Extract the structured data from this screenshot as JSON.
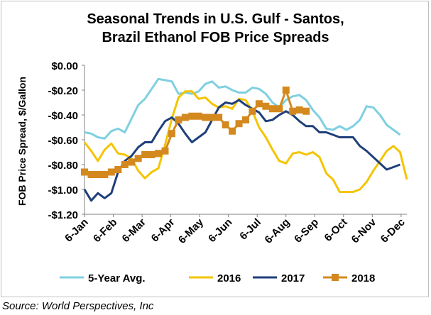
{
  "chart_data": {
    "type": "line",
    "title_line1": "Seasonal Trends in U.S. Gulf - Santos,",
    "title_line2": "Brazil Ethanol FOB Price Spreads",
    "ylabel": "FOB Price Spread, $/Gallon",
    "xlabel": "",
    "ylim": [
      -1.2,
      0
    ],
    "yticks": [
      0,
      -0.2,
      -0.4,
      -0.6,
      -0.8,
      -1.0,
      -1.2
    ],
    "ytick_labels": [
      "$0.00",
      "-$0.20",
      "-$0.40",
      "-$0.60",
      "-$0.80",
      "-$1.00",
      "-$1.20"
    ],
    "xtick_labels": [
      "6-Jan",
      "6-Feb",
      "6-Mar",
      "6-Apr",
      "6-May",
      "6-Jun",
      "6-Jul",
      "6-Aug",
      "6-Sep",
      "6-Oct",
      "6-Nov",
      "6-Dec"
    ],
    "legend_position": "bottom",
    "grid": false,
    "source": "Source: World Perspectives, Inc",
    "series": [
      {
        "name": "5-Year Avg.",
        "color": "#7fd0e0",
        "marker": "none",
        "points": [
          [
            1,
            -0.54
          ],
          [
            2,
            -0.55
          ],
          [
            3,
            -0.58
          ],
          [
            4,
            -0.59
          ],
          [
            5,
            -0.53
          ],
          [
            6,
            -0.51
          ],
          [
            7,
            -0.54
          ],
          [
            8,
            -0.43
          ],
          [
            9,
            -0.32
          ],
          [
            10,
            -0.27
          ],
          [
            11,
            -0.19
          ],
          [
            12,
            -0.11
          ],
          [
            13,
            -0.12
          ],
          [
            14,
            -0.13
          ],
          [
            15,
            -0.23
          ],
          [
            16,
            -0.22
          ],
          [
            17,
            -0.23
          ],
          [
            18,
            -0.21
          ],
          [
            19,
            -0.15
          ],
          [
            20,
            -0.13
          ],
          [
            21,
            -0.18
          ],
          [
            22,
            -0.17
          ],
          [
            23,
            -0.2
          ],
          [
            24,
            -0.22
          ],
          [
            25,
            -0.22
          ],
          [
            26,
            -0.18
          ],
          [
            27,
            -0.19
          ],
          [
            28,
            -0.23
          ],
          [
            29,
            -0.3
          ],
          [
            30,
            -0.34
          ],
          [
            31,
            -0.28
          ],
          [
            32,
            -0.25
          ],
          [
            33,
            -0.24
          ],
          [
            34,
            -0.28
          ],
          [
            35,
            -0.36
          ],
          [
            36,
            -0.42
          ],
          [
            37,
            -0.51
          ],
          [
            38,
            -0.52
          ],
          [
            39,
            -0.49
          ],
          [
            40,
            -0.52
          ],
          [
            41,
            -0.49
          ],
          [
            42,
            -0.44
          ],
          [
            43,
            -0.33
          ],
          [
            44,
            -0.34
          ],
          [
            45,
            -0.4
          ],
          [
            46,
            -0.48
          ],
          [
            47,
            -0.52
          ],
          [
            48,
            -0.56
          ]
        ]
      },
      {
        "name": "2016",
        "color": "#f5c400",
        "marker": "none",
        "points": [
          [
            1,
            -0.62
          ],
          [
            2,
            -0.69
          ],
          [
            3,
            -0.77
          ],
          [
            4,
            -0.68
          ],
          [
            5,
            -0.63
          ],
          [
            6,
            -0.71
          ],
          [
            7,
            -0.72
          ],
          [
            8,
            -0.75
          ],
          [
            9,
            -0.85
          ],
          [
            10,
            -0.91
          ],
          [
            11,
            -0.86
          ],
          [
            12,
            -0.83
          ],
          [
            13,
            -0.64
          ],
          [
            14,
            -0.43
          ],
          [
            15,
            -0.26
          ],
          [
            16,
            -0.21
          ],
          [
            17,
            -0.21
          ],
          [
            18,
            -0.27
          ],
          [
            19,
            -0.26
          ],
          [
            20,
            -0.31
          ],
          [
            21,
            -0.34
          ],
          [
            22,
            -0.33
          ],
          [
            23,
            -0.35
          ],
          [
            24,
            -0.27
          ],
          [
            25,
            -0.28
          ],
          [
            26,
            -0.37
          ],
          [
            27,
            -0.5
          ],
          [
            28,
            -0.58
          ],
          [
            29,
            -0.68
          ],
          [
            30,
            -0.77
          ],
          [
            31,
            -0.79
          ],
          [
            32,
            -0.71
          ],
          [
            33,
            -0.7
          ],
          [
            34,
            -0.72
          ],
          [
            35,
            -0.7
          ],
          [
            36,
            -0.74
          ],
          [
            37,
            -0.87
          ],
          [
            38,
            -0.92
          ],
          [
            39,
            -1.02
          ],
          [
            40,
            -1.02
          ],
          [
            41,
            -1.02
          ],
          [
            42,
            -1.0
          ],
          [
            43,
            -0.94
          ],
          [
            44,
            -0.85
          ],
          [
            45,
            -0.77
          ],
          [
            46,
            -0.69
          ],
          [
            47,
            -0.65
          ],
          [
            48,
            -0.7
          ],
          [
            49,
            -0.92
          ]
        ]
      },
      {
        "name": "2017",
        "color": "#1f3f7a",
        "marker": "none",
        "points": [
          [
            1,
            -1.0
          ],
          [
            2,
            -1.09
          ],
          [
            3,
            -1.03
          ],
          [
            4,
            -1.07
          ],
          [
            5,
            -1.03
          ],
          [
            6,
            -0.86
          ],
          [
            7,
            -0.77
          ],
          [
            8,
            -0.73
          ],
          [
            9,
            -0.66
          ],
          [
            10,
            -0.62
          ],
          [
            11,
            -0.62
          ],
          [
            12,
            -0.53
          ],
          [
            13,
            -0.45
          ],
          [
            14,
            -0.42
          ],
          [
            15,
            -0.47
          ],
          [
            16,
            -0.55
          ],
          [
            17,
            -0.62
          ],
          [
            18,
            -0.58
          ],
          [
            19,
            -0.54
          ],
          [
            20,
            -0.44
          ],
          [
            21,
            -0.34
          ],
          [
            22,
            -0.3
          ],
          [
            23,
            -0.31
          ],
          [
            24,
            -0.28
          ],
          [
            25,
            -0.32
          ],
          [
            26,
            -0.35
          ],
          [
            27,
            -0.38
          ],
          [
            28,
            -0.45
          ],
          [
            29,
            -0.44
          ],
          [
            30,
            -0.4
          ],
          [
            31,
            -0.37
          ],
          [
            32,
            -0.4
          ],
          [
            33,
            -0.45
          ],
          [
            34,
            -0.49
          ],
          [
            35,
            -0.49
          ],
          [
            36,
            -0.54
          ],
          [
            37,
            -0.54
          ],
          [
            38,
            -0.56
          ],
          [
            39,
            -0.58
          ],
          [
            40,
            -0.58
          ],
          [
            41,
            -0.58
          ],
          [
            42,
            -0.65
          ],
          [
            43,
            -0.69
          ],
          [
            44,
            -0.74
          ],
          [
            45,
            -0.79
          ],
          [
            46,
            -0.84
          ],
          [
            47,
            -0.82
          ],
          [
            48,
            -0.8
          ]
        ]
      },
      {
        "name": "2018",
        "color": "#d4891f",
        "marker": "square",
        "points": [
          [
            1,
            -0.86
          ],
          [
            2,
            -0.88
          ],
          [
            3,
            -0.88
          ],
          [
            4,
            -0.88
          ],
          [
            5,
            -0.86
          ],
          [
            6,
            -0.84
          ],
          [
            7,
            -0.8
          ],
          [
            8,
            -0.78
          ],
          [
            9,
            -0.75
          ],
          [
            10,
            -0.72
          ],
          [
            11,
            -0.72
          ],
          [
            12,
            -0.71
          ],
          [
            13,
            -0.69
          ],
          [
            14,
            -0.55
          ],
          [
            15,
            -0.44
          ],
          [
            16,
            -0.42
          ],
          [
            17,
            -0.41
          ],
          [
            18,
            -0.41
          ],
          [
            19,
            -0.42
          ],
          [
            20,
            -0.42
          ],
          [
            21,
            -0.42
          ],
          [
            22,
            -0.48
          ],
          [
            23,
            -0.53
          ],
          [
            24,
            -0.47
          ],
          [
            25,
            -0.44
          ],
          [
            26,
            -0.37
          ],
          [
            27,
            -0.31
          ],
          [
            28,
            -0.33
          ],
          [
            29,
            -0.35
          ],
          [
            30,
            -0.35
          ],
          [
            31,
            -0.2
          ],
          [
            32,
            -0.37
          ],
          [
            33,
            -0.36
          ],
          [
            34,
            -0.37
          ]
        ]
      }
    ]
  }
}
